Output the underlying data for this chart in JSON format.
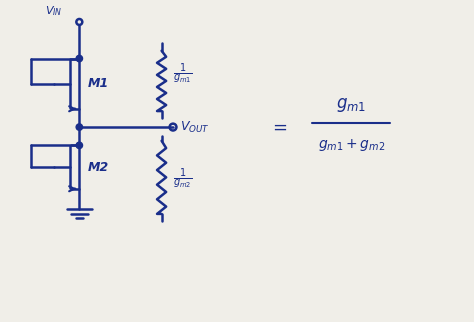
{
  "bg_color": "#f0eee8",
  "line_color": "#1a2e8a",
  "line_width": 1.8,
  "fig_width": 4.74,
  "fig_height": 3.22,
  "dpi": 100,
  "font_size_small": 8,
  "font_size_med": 9,
  "font_size_large": 11
}
